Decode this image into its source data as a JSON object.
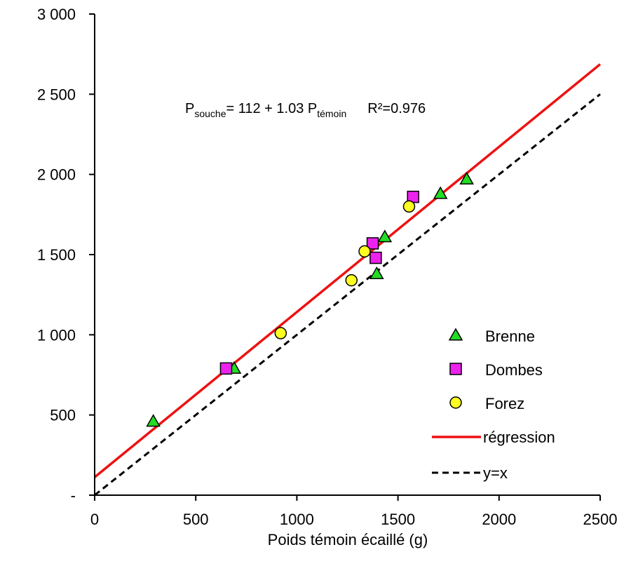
{
  "chart_data": {
    "type": "scatter",
    "xlabel": "Poids témoin écaillé (g)",
    "ylabel": "",
    "xlim": [
      0,
      2500
    ],
    "ylim": [
      0,
      3000
    ],
    "x_ticks": [
      0,
      500,
      1000,
      1500,
      2000,
      2500
    ],
    "x_tick_labels": [
      "0",
      "500",
      "1000",
      "1500",
      "2000",
      "2500"
    ],
    "y_ticks": [
      0,
      500,
      1000,
      1500,
      2000,
      2500,
      3000
    ],
    "y_tick_labels": [
      "-",
      "500",
      "1 000",
      "1 500",
      "2 000",
      "2 500",
      "3 000"
    ],
    "grid": false,
    "legend_position": "bottom-right",
    "equation": {
      "p1": "P",
      "sub1": "souche",
      "mid": "= 112 + 1.03 P",
      "sub2": "témoin",
      "r2": "R²=0.976"
    },
    "series": [
      {
        "name": "Brenne",
        "marker": "triangle",
        "color": "#22dd22",
        "points": [
          [
            290,
            460
          ],
          [
            690,
            790
          ],
          [
            1395,
            1380
          ],
          [
            1435,
            1610
          ],
          [
            1710,
            1880
          ],
          [
            1840,
            1970
          ]
        ]
      },
      {
        "name": "Dombes",
        "marker": "square",
        "color": "#ee22ee",
        "points": [
          [
            650,
            790
          ],
          [
            1375,
            1570
          ],
          [
            1390,
            1480
          ],
          [
            1575,
            1860
          ]
        ]
      },
      {
        "name": "Forez",
        "marker": "circle",
        "color": "#ffff22",
        "points": [
          [
            920,
            1010
          ],
          [
            1270,
            1340
          ],
          [
            1335,
            1520
          ],
          [
            1555,
            1800
          ]
        ]
      }
    ],
    "lines": [
      {
        "name": "régression",
        "color": "#ee1111",
        "style": "solid",
        "intercept": 112,
        "slope": 1.03
      },
      {
        "name": "y=x",
        "color": "#000000",
        "style": "dashed",
        "intercept": 0,
        "slope": 1
      }
    ]
  }
}
